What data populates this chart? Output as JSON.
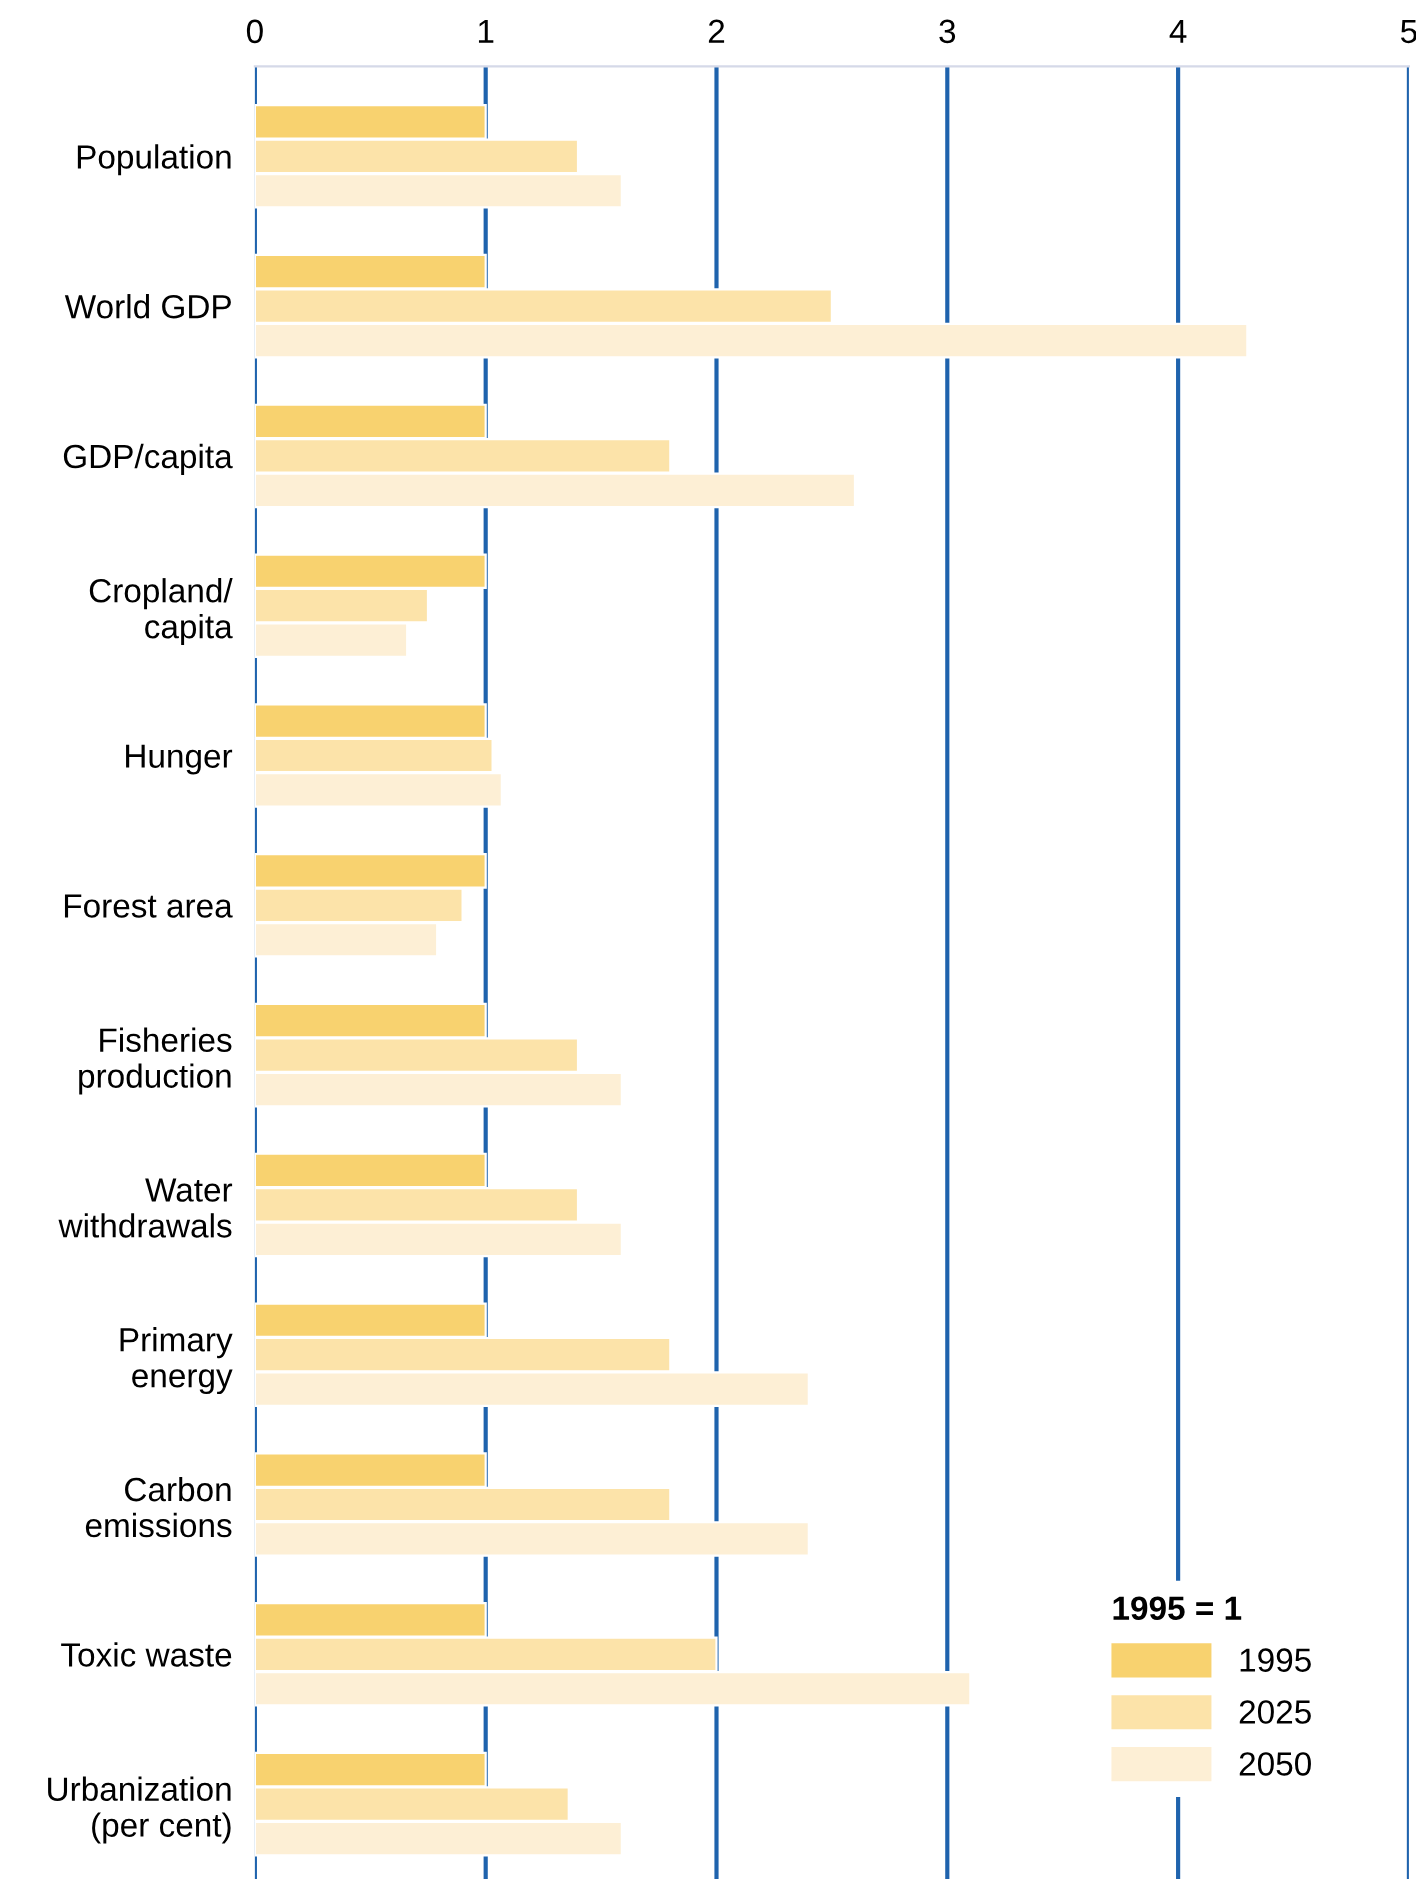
{
  "chart_data": {
    "type": "bar",
    "orientation": "horizontal",
    "categories": [
      "Population",
      "World GDP",
      "GDP/capita",
      "Cropland/\ncapita",
      "Hunger",
      "Forest area",
      "Fisheries\nproduction",
      "Water\nwithdrawals",
      "Primary\nenergy",
      "Carbon\nemissions",
      "Toxic waste",
      "Urbanization\n(per cent)"
    ],
    "series": [
      {
        "name": "1995",
        "color": "#f8d26f",
        "values": [
          1,
          1,
          1,
          1,
          1,
          1,
          1,
          1,
          1,
          1,
          1,
          1
        ]
      },
      {
        "name": "2025",
        "color": "#fce3a9",
        "values": [
          1.4,
          2.5,
          1.8,
          0.75,
          1.03,
          0.9,
          1.4,
          1.4,
          1.8,
          1.8,
          2.0,
          1.36
        ]
      },
      {
        "name": "2050",
        "color": "#fdefd5",
        "values": [
          1.59,
          4.3,
          2.6,
          0.66,
          1.07,
          0.79,
          1.59,
          1.59,
          2.4,
          2.4,
          3.1,
          1.59
        ]
      }
    ],
    "xlim": [
      0,
      5
    ],
    "xticks": [
      0,
      1,
      2,
      3,
      4,
      5
    ],
    "grid": "x",
    "legend": "bottom right",
    "legend_title": "1995 = 1"
  }
}
